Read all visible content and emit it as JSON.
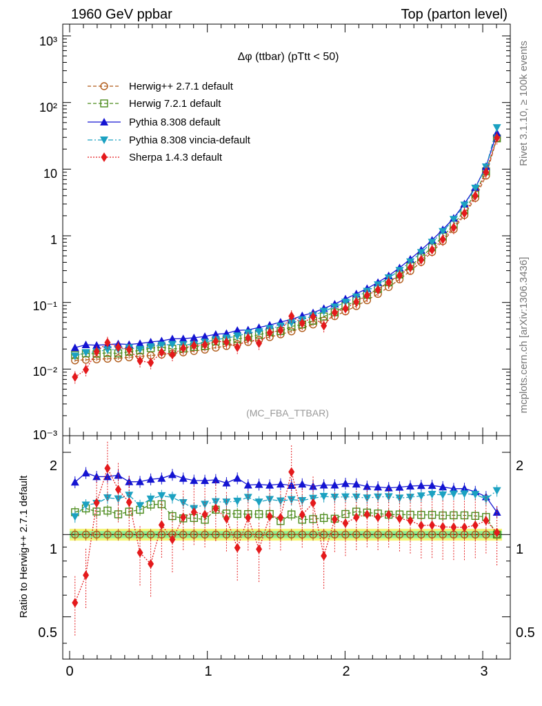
{
  "header": {
    "left": "1960 GeV ppbar",
    "right": "Top (parton level)"
  },
  "side": {
    "events": "Rivet 3.1.10, ≥ 100k events",
    "source": "mcplots.cern.ch [arXiv:1306.3436]"
  },
  "chart_data": {
    "type": "line",
    "title": "Δφ (ttbar) (pTtt < 50)",
    "watermark": "(MC_FBA_TTBAR)",
    "main": {
      "yscale": "log",
      "ylim": [
        0.001,
        1500
      ],
      "xlim": [
        -0.05,
        3.2
      ],
      "ytick_labels": [
        "10⁻³",
        "10⁻²",
        "10⁻¹",
        "1",
        "10",
        "10²",
        "10³"
      ]
    },
    "ratio": {
      "ylabel": "Ratio to Herwig++ 2.7.1 default",
      "ylim": [
        0.35,
        2.3
      ],
      "ytick_labels": [
        "0.5",
        "1",
        "2"
      ]
    },
    "xtick_labels": [
      "0",
      "1",
      "2",
      "3"
    ],
    "x": [
      0.039,
      0.118,
      0.196,
      0.275,
      0.353,
      0.432,
      0.511,
      0.589,
      0.668,
      0.746,
      0.825,
      0.903,
      0.982,
      1.061,
      1.139,
      1.218,
      1.296,
      1.375,
      1.453,
      1.532,
      1.611,
      1.689,
      1.768,
      1.846,
      1.925,
      2.003,
      2.082,
      2.16,
      2.239,
      2.317,
      2.396,
      2.474,
      2.553,
      2.632,
      2.71,
      2.789,
      2.867,
      2.946,
      3.024,
      3.103
    ],
    "series": [
      {
        "name": "Herwig++ 2.7.1 default",
        "color": "#b05a18",
        "marker": "circle-open",
        "dash": "dashed",
        "values": [
          0.0135,
          0.0138,
          0.014,
          0.0143,
          0.0145,
          0.015,
          0.0155,
          0.016,
          0.0165,
          0.0172,
          0.0178,
          0.0187,
          0.0196,
          0.021,
          0.0222,
          0.0237,
          0.0255,
          0.0276,
          0.0302,
          0.0332,
          0.0368,
          0.0413,
          0.0467,
          0.0535,
          0.0623,
          0.0735,
          0.0882,
          0.108,
          0.134,
          0.17,
          0.222,
          0.297,
          0.405,
          0.57,
          0.83,
          1.25,
          2.05,
          3.7,
          8.0,
          29.0
        ]
      },
      {
        "name": "Herwig 7.2.1 default",
        "color": "#4a8a1a",
        "marker": "square-open",
        "dash": "dashed",
        "values": [
          0.0163,
          0.0172,
          0.017,
          0.0175,
          0.0172,
          0.0182,
          0.0191,
          0.0206,
          0.0213,
          0.0201,
          0.0204,
          0.0215,
          0.0222,
          0.0259,
          0.0265,
          0.0282,
          0.0303,
          0.0328,
          0.0359,
          0.0372,
          0.0436,
          0.0468,
          0.0532,
          0.0615,
          0.0712,
          0.0874,
          0.107,
          0.13,
          0.16,
          0.201,
          0.263,
          0.351,
          0.478,
          0.673,
          0.975,
          1.47,
          2.41,
          4.33,
          9.28,
          29.0
        ]
      },
      {
        "name": "Pythia 8.308 default",
        "color": "#1414d2",
        "marker": "triangle-up",
        "dash": "solid",
        "values": [
          0.021,
          0.0232,
          0.0228,
          0.0233,
          0.0239,
          0.0234,
          0.0242,
          0.0255,
          0.0265,
          0.0285,
          0.0286,
          0.0295,
          0.0309,
          0.0333,
          0.0343,
          0.0381,
          0.0387,
          0.0421,
          0.0458,
          0.0508,
          0.0557,
          0.0632,
          0.0701,
          0.0812,
          0.0946,
          0.113,
          0.135,
          0.162,
          0.2,
          0.252,
          0.331,
          0.447,
          0.612,
          0.862,
          1.24,
          1.84,
          3.02,
          5.31,
          11.0,
          35.0
        ]
      },
      {
        "name": "Pythia 8.308 vincia-default",
        "color": "#1ba1c1",
        "marker": "triangle-down",
        "dash": "dashdot",
        "values": [
          0.0157,
          0.0177,
          0.0182,
          0.0195,
          0.0196,
          0.0209,
          0.0198,
          0.0216,
          0.0229,
          0.0235,
          0.0233,
          0.0233,
          0.0253,
          0.0277,
          0.0292,
          0.0314,
          0.0349,
          0.0363,
          0.0406,
          0.0441,
          0.0494,
          0.055,
          0.0634,
          0.0738,
          0.0854,
          0.101,
          0.121,
          0.147,
          0.184,
          0.234,
          0.302,
          0.407,
          0.561,
          0.8,
          1.16,
          1.76,
          2.89,
          5.19,
          10.8,
          42.0
        ]
      },
      {
        "name": "Sherpa 1.4.3 default",
        "color": "#e41a1c",
        "marker": "diamond",
        "dash": "dotted",
        "values": [
          0.0076,
          0.0098,
          0.0183,
          0.025,
          0.0212,
          0.0197,
          0.0133,
          0.0125,
          0.0179,
          0.0165,
          0.0206,
          0.0226,
          0.0232,
          0.0262,
          0.0254,
          0.0212,
          0.0294,
          0.0244,
          0.0352,
          0.0383,
          0.0624,
          0.0488,
          0.0609,
          0.0447,
          0.0709,
          0.0809,
          0.102,
          0.128,
          0.155,
          0.201,
          0.254,
          0.334,
          0.437,
          0.617,
          0.886,
          1.33,
          2.18,
          4.0,
          9.0,
          29.5
        ]
      }
    ],
    "legend_position": "top-left"
  }
}
